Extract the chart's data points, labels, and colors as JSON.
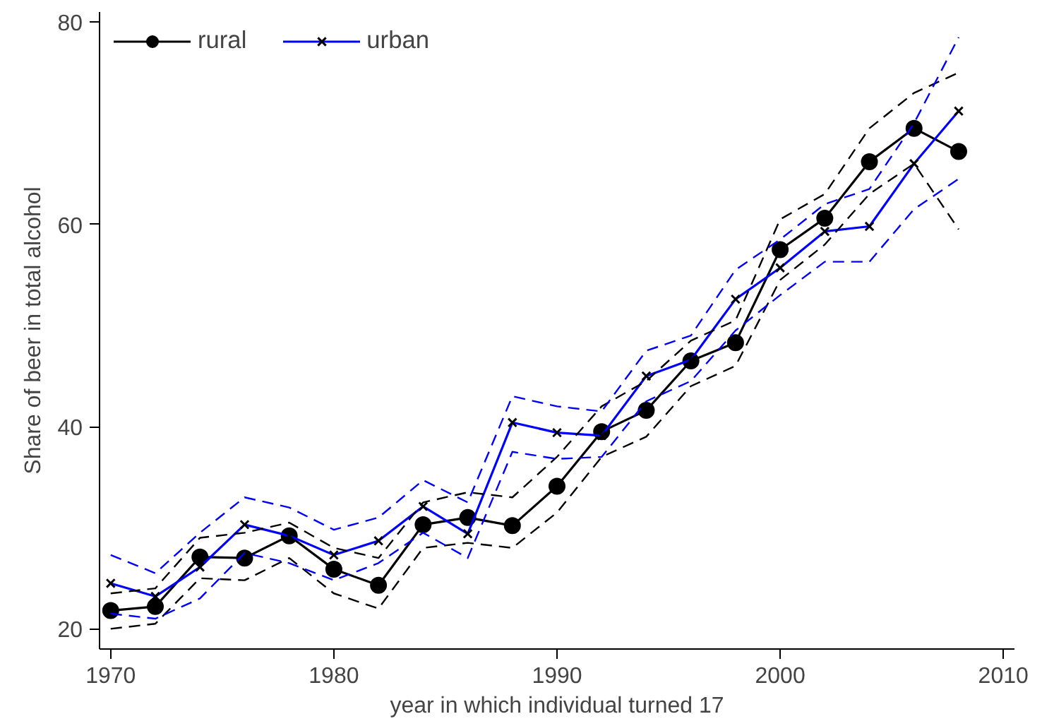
{
  "chart_data": {
    "type": "line",
    "xlabel": "year in which individual turned 17",
    "ylabel": "Share of beer in total alcohol",
    "x": [
      1970,
      1972,
      1974,
      1976,
      1978,
      1980,
      1982,
      1984,
      1986,
      1988,
      1990,
      1992,
      1994,
      1996,
      1998,
      2000,
      2002,
      2004,
      2006,
      2008
    ],
    "series": [
      {
        "name": "rural",
        "color": "#000000",
        "marker": "circle",
        "values": [
          21.8,
          22.2,
          27.1,
          27.0,
          29.2,
          25.9,
          24.3,
          30.3,
          31.0,
          30.2,
          34.1,
          39.5,
          41.6,
          46.5,
          48.3,
          57.5,
          60.6,
          66.2,
          69.5,
          67.2
        ]
      },
      {
        "name": "urban",
        "color": "#0000ff",
        "marker": "cross",
        "values": [
          24.5,
          23.2,
          26.1,
          30.3,
          29.2,
          27.3,
          28.7,
          32.1,
          29.4,
          40.4,
          39.4,
          39.1,
          45.0,
          46.6,
          52.6,
          55.7,
          59.3,
          59.8,
          66.0,
          71.2
        ]
      },
      {
        "color": "#000000",
        "marker": "none",
        "line_style": "dashed",
        "values": [
          20,
          20.5,
          25,
          24.8,
          27,
          23.5,
          22,
          28,
          28.5,
          28,
          31.5,
          37,
          39,
          44,
          46,
          54.5,
          58,
          63,
          66,
          59.5
        ]
      },
      {
        "color": "#000000",
        "marker": "none",
        "line_style": "dashed",
        "values": [
          23.5,
          24,
          29,
          29.5,
          30.5,
          28,
          27,
          32.5,
          33.5,
          33,
          37,
          42,
          44.5,
          48.5,
          50.5,
          60.5,
          63,
          69.5,
          73,
          75
        ]
      },
      {
        "color": "#0000ff",
        "marker": "none",
        "line_style": "dashed",
        "values": [
          21.5,
          21,
          23,
          27.5,
          26.5,
          24.8,
          26.5,
          29.5,
          27,
          37.5,
          36.8,
          37,
          42.5,
          44.5,
          49.5,
          53,
          56.3,
          56.3,
          61.5,
          64.5
        ]
      },
      {
        "color": "#0000ff",
        "marker": "none",
        "line_style": "dashed",
        "values": [
          27.3,
          25.5,
          29.5,
          33,
          32,
          29.8,
          31,
          34.7,
          32.5,
          43,
          42,
          41.5,
          47.5,
          49,
          55.5,
          58.5,
          62,
          63.5,
          70,
          78.5
        ]
      }
    ],
    "xlim": [
      1969.5,
      2010.5
    ],
    "ylim": [
      18,
      81
    ],
    "xticks": [
      1970,
      1980,
      1990,
      2000,
      2010
    ],
    "yticks": [
      20,
      40,
      60,
      80
    ],
    "grid": false,
    "legend": "top left"
  }
}
